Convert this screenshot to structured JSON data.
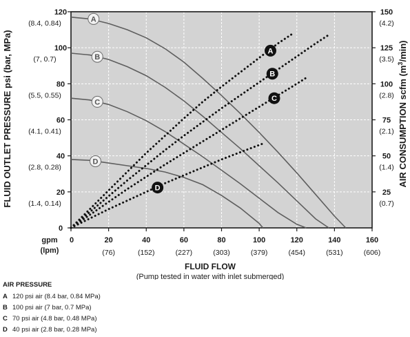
{
  "chart_data": {
    "type": "line",
    "xlabel": "FLUID FLOW",
    "subtitle": "(Pump tested in water with inlet submerged)",
    "ylabel_left": "FLUID OUTLET PRESSURE psi (bar, MPa)",
    "ylabel_right_prefix": "AIR CONSUMPTION scfm (m",
    "ylabel_right_sup": "3",
    "ylabel_right_suffix": "/min)",
    "x_unit_primary": "gpm",
    "x_unit_secondary": "(lpm)",
    "xlim": [
      0,
      160
    ],
    "ylim_left": [
      0,
      120
    ],
    "ylim_right": [
      0,
      150
    ],
    "grid": true,
    "x_ticks": [
      {
        "value": 0,
        "label": "0",
        "sub": ""
      },
      {
        "value": 20,
        "label": "20",
        "sub": "(76)"
      },
      {
        "value": 40,
        "label": "40",
        "sub": "(152)"
      },
      {
        "value": 60,
        "label": "60",
        "sub": "(227)"
      },
      {
        "value": 80,
        "label": "80",
        "sub": "(303)"
      },
      {
        "value": 100,
        "label": "100",
        "sub": "(379)"
      },
      {
        "value": 120,
        "label": "120",
        "sub": "(454)"
      },
      {
        "value": 140,
        "label": "140",
        "sub": "(531)"
      },
      {
        "value": 160,
        "label": "160",
        "sub": "(606)"
      }
    ],
    "y_ticks_left": [
      {
        "value": 0,
        "label": "0",
        "sub": ""
      },
      {
        "value": 20,
        "label": "20",
        "sub": "(1.4, 0.14)"
      },
      {
        "value": 40,
        "label": "40",
        "sub": "(2.8, 0.28)"
      },
      {
        "value": 60,
        "label": "60",
        "sub": "(4.1, 0.41)"
      },
      {
        "value": 80,
        "label": "80",
        "sub": "(5.5, 0.55)"
      },
      {
        "value": 100,
        "label": "100",
        "sub": "(7, 0.7)"
      },
      {
        "value": 120,
        "label": "120",
        "sub": "(8.4, 0.84)"
      }
    ],
    "y_ticks_right": [
      {
        "value": 25,
        "label": "25",
        "sub": "(0.7)"
      },
      {
        "value": 50,
        "label": "50",
        "sub": "(1.4)"
      },
      {
        "value": 75,
        "label": "75",
        "sub": "(2.1)"
      },
      {
        "value": 100,
        "label": "100",
        "sub": "(2.8)"
      },
      {
        "value": 125,
        "label": "125",
        "sub": "(3.5)"
      },
      {
        "value": 150,
        "label": "150",
        "sub": "(4.2)"
      }
    ],
    "pressure_series": [
      {
        "name": "A",
        "x": [
          0,
          10,
          20,
          30,
          40,
          50,
          60,
          70,
          80,
          90,
          100,
          110,
          120,
          130,
          140,
          146
        ],
        "y": [
          117,
          116,
          113.5,
          110,
          105.5,
          99.5,
          92,
          83,
          73.5,
          63.5,
          53,
          42,
          30.5,
          18.5,
          6.5,
          0
        ]
      },
      {
        "name": "B",
        "x": [
          0,
          10,
          20,
          30,
          40,
          50,
          60,
          70,
          80,
          90,
          100,
          110,
          120,
          130,
          137
        ],
        "y": [
          97,
          96,
          93.5,
          89.5,
          84.5,
          78,
          70.5,
          62,
          53,
          44,
          34.5,
          25,
          15,
          5,
          0
        ]
      },
      {
        "name": "C",
        "x": [
          0,
          10,
          20,
          30,
          40,
          50,
          60,
          70,
          80,
          90,
          100,
          110,
          120,
          125
        ],
        "y": [
          72,
          71,
          68.5,
          64.5,
          59.5,
          53.5,
          46.5,
          39.5,
          32,
          24.5,
          16.5,
          8.5,
          2,
          0
        ]
      },
      {
        "name": "D",
        "x": [
          0,
          10,
          20,
          30,
          40,
          50,
          60,
          70,
          80,
          90,
          100,
          102
        ],
        "y": [
          38,
          37.5,
          36,
          34.5,
          33,
          31,
          28,
          24,
          18,
          11,
          2.5,
          0
        ]
      }
    ],
    "air_series": [
      {
        "name": "A",
        "x": [
          0,
          10,
          20,
          30,
          40,
          50,
          60,
          70,
          80,
          90,
          100,
          110,
          118
        ],
        "y": [
          0,
          13,
          26,
          39,
          52,
          64,
          76,
          87.5,
          98,
          108,
          118,
          128,
          135
        ]
      },
      {
        "name": "B",
        "x": [
          0,
          10,
          20,
          30,
          40,
          50,
          60,
          70,
          80,
          90,
          100,
          110,
          120,
          130,
          137
        ],
        "y": [
          0,
          11,
          22,
          33,
          43.5,
          54,
          64,
          73.5,
          83,
          92,
          101,
          110,
          119,
          128,
          134
        ]
      },
      {
        "name": "C",
        "x": [
          0,
          10,
          20,
          30,
          40,
          50,
          60,
          70,
          80,
          90,
          100,
          110,
          120,
          126
        ],
        "y": [
          0,
          9,
          18,
          27,
          35.5,
          44,
          52,
          60,
          68,
          76,
          84,
          92,
          100,
          105
        ]
      },
      {
        "name": "D",
        "x": [
          0,
          10,
          20,
          30,
          40,
          50,
          60,
          70,
          80,
          90,
          100,
          102
        ],
        "y": [
          0,
          6.5,
          13,
          19,
          25,
          31,
          36.5,
          42,
          47.5,
          52.5,
          57.5,
          58.5
        ]
      }
    ],
    "pressure_markers": [
      {
        "name": "A",
        "x": 12,
        "y": 116
      },
      {
        "name": "B",
        "x": 14,
        "y": 95
      },
      {
        "name": "C",
        "x": 14,
        "y": 70
      },
      {
        "name": "D",
        "x": 13,
        "y": 37
      }
    ],
    "air_markers": [
      {
        "name": "A",
        "x": 106,
        "y": 123
      },
      {
        "name": "B",
        "x": 107,
        "y": 107
      },
      {
        "name": "C",
        "x": 108,
        "y": 90
      },
      {
        "name": "D",
        "x": 46,
        "y": 28
      }
    ]
  },
  "legend": {
    "title": "AIR PRESSURE",
    "items": [
      {
        "key": "A",
        "text": "120 psi air (8.4 bar, 0.84 MPa)"
      },
      {
        "key": "B",
        "text": "100 psi air (7 bar, 0.7 MPa)"
      },
      {
        "key": "C",
        "text": "70 psi air (4.8 bar, 0.48 MPa)"
      },
      {
        "key": "D",
        "text": "40 psi air (2.8 bar, 0.28 MPa)"
      }
    ]
  }
}
